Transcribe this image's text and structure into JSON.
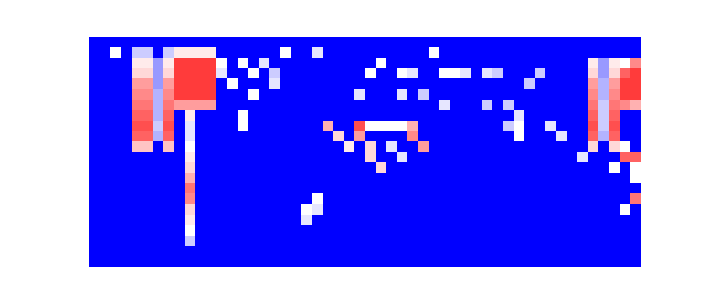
{
  "chart_data": {
    "type": "heatmap",
    "tick_labels": false,
    "zlim": [
      0,
      1
    ],
    "cells": [
      [
        0,
        0,
        0,
        0,
        0,
        0,
        0,
        0,
        0,
        0,
        0,
        0,
        0,
        0,
        0,
        0,
        0,
        0,
        0,
        0,
        0,
        0,
        0,
        0,
        0,
        0,
        0,
        0,
        0,
        0,
        0,
        0,
        0,
        0,
        0,
        0,
        0,
        0,
        0,
        0,
        0,
        0,
        0,
        0,
        0,
        0,
        0,
        0,
        0,
        0,
        0,
        0
      ],
      [
        0,
        0,
        0.5,
        0,
        0.4,
        0.4,
        0,
        0.4,
        0.55,
        0.55,
        0.55,
        0.55,
        0,
        0,
        0,
        0,
        0,
        0,
        0.5,
        0,
        0,
        0.45,
        0,
        0,
        0,
        0,
        0,
        0,
        0,
        0,
        0,
        0,
        0.5,
        0,
        0,
        0,
        0,
        0,
        0,
        0,
        0,
        0,
        0,
        0,
        0,
        0,
        0,
        0,
        0,
        0,
        0,
        0
      ],
      [
        0,
        0,
        0,
        0,
        0.55,
        0.55,
        0.3,
        0.55,
        1,
        1,
        1,
        1,
        0.5,
        0,
        0.5,
        0,
        0.45,
        0,
        0,
        0,
        0,
        0,
        0,
        0,
        0,
        0,
        0,
        0.5,
        0,
        0,
        0,
        0,
        0,
        0,
        0,
        0,
        0,
        0,
        0,
        0,
        0,
        0,
        0,
        0,
        0,
        0,
        0,
        0.55,
        0.3,
        0.55,
        0.5,
        0.8
      ],
      [
        0,
        0,
        0,
        0,
        0.6,
        0.6,
        0.3,
        0.6,
        1,
        1,
        1,
        1,
        0.45,
        0,
        0,
        0.5,
        0,
        0.4,
        0,
        0,
        0,
        0,
        0,
        0,
        0,
        0,
        0.5,
        0,
        0,
        0.5,
        0.45,
        0,
        0,
        0.5,
        0.5,
        0.45,
        0,
        0.45,
        0.4,
        0,
        0,
        0,
        0.4,
        0,
        0,
        0,
        0,
        0.6,
        0.3,
        0.6,
        0.9,
        1
      ],
      [
        0,
        0,
        0,
        0,
        0.75,
        0.75,
        0.3,
        0.75,
        1,
        1,
        1,
        1,
        0,
        0.5,
        0,
        0,
        0,
        0.45,
        0,
        0,
        0,
        0,
        0,
        0,
        0,
        0,
        0,
        0,
        0,
        0,
        0,
        0,
        0,
        0,
        0,
        0,
        0,
        0,
        0,
        0,
        0,
        0.4,
        0,
        0,
        0,
        0,
        0,
        0.75,
        0.35,
        0.75,
        1,
        1
      ],
      [
        0,
        0,
        0,
        0,
        0.8,
        0.8,
        0.35,
        0.8,
        1,
        1,
        1,
        1,
        0,
        0,
        0,
        0.5,
        0,
        0,
        0,
        0,
        0,
        0,
        0,
        0,
        0,
        0.45,
        0,
        0,
        0,
        0.45,
        0,
        0.4,
        0,
        0,
        0,
        0,
        0,
        0,
        0,
        0,
        0,
        0,
        0,
        0,
        0,
        0,
        0,
        0.8,
        0.35,
        0.8,
        1,
        1
      ],
      [
        0,
        0,
        0,
        0,
        0.85,
        0.85,
        0.35,
        0.85,
        0.75,
        0.75,
        0.75,
        0.75,
        0,
        0,
        0,
        0,
        0,
        0,
        0,
        0,
        0,
        0,
        0,
        0,
        0,
        0,
        0,
        0,
        0,
        0,
        0,
        0,
        0,
        0.45,
        0,
        0,
        0,
        0.4,
        0,
        0.4,
        0,
        0,
        0,
        0,
        0,
        0,
        0,
        0.85,
        0.4,
        0.85,
        0.8,
        0.7
      ],
      [
        0,
        0,
        0,
        0,
        0.9,
        0.9,
        0.35,
        0.9,
        0,
        0.55,
        0,
        0,
        0,
        0,
        0.5,
        0,
        0,
        0,
        0,
        0,
        0,
        0,
        0,
        0,
        0,
        0,
        0,
        0,
        0,
        0,
        0,
        0,
        0,
        0,
        0,
        0,
        0,
        0,
        0,
        0,
        0.45,
        0,
        0,
        0,
        0,
        0,
        0,
        0.9,
        0.4,
        0.9,
        0,
        0
      ],
      [
        0,
        0,
        0,
        0,
        0.95,
        0.95,
        0.4,
        0.95,
        0,
        0.45,
        0,
        0,
        0,
        0,
        0.5,
        0,
        0,
        0,
        0,
        0,
        0,
        0,
        0.7,
        0,
        0,
        0.95,
        0.5,
        0.5,
        0.5,
        0.5,
        0.7,
        0,
        0,
        0,
        0,
        0,
        0,
        0,
        0,
        0.4,
        0.5,
        0,
        0,
        0.45,
        0,
        0,
        0,
        0.95,
        0.4,
        0.95,
        0,
        0
      ],
      [
        0,
        0,
        0,
        0,
        0.9,
        0.9,
        0.35,
        0.9,
        0,
        0.45,
        0,
        0,
        0,
        0,
        0,
        0,
        0,
        0,
        0,
        0,
        0,
        0,
        0,
        0.6,
        0,
        0.75,
        0,
        0,
        0,
        0,
        0.8,
        0,
        0,
        0,
        0,
        0,
        0,
        0,
        0,
        0,
        0.5,
        0,
        0,
        0,
        0.45,
        0,
        0,
        0.9,
        0.35,
        0.9,
        0,
        0
      ],
      [
        0,
        0,
        0,
        0,
        0.65,
        0.65,
        0,
        0.65,
        0,
        0.5,
        0,
        0,
        0,
        0,
        0,
        0,
        0,
        0,
        0,
        0,
        0,
        0,
        0,
        0,
        0.55,
        0,
        0.6,
        0,
        0.45,
        0,
        0,
        0.75,
        0,
        0,
        0,
        0,
        0,
        0,
        0,
        0,
        0,
        0,
        0,
        0,
        0,
        0,
        0,
        0.6,
        0,
        0.6,
        0.5,
        0
      ],
      [
        0,
        0,
        0,
        0,
        0,
        0,
        0,
        0,
        0,
        0.55,
        0,
        0,
        0,
        0,
        0,
        0,
        0,
        0,
        0,
        0,
        0,
        0,
        0,
        0,
        0,
        0,
        0.6,
        0,
        0,
        0.45,
        0,
        0,
        0,
        0,
        0,
        0,
        0,
        0,
        0,
        0,
        0,
        0,
        0,
        0,
        0,
        0,
        0.45,
        0,
        0,
        0,
        0.9,
        0.9
      ],
      [
        0,
        0,
        0,
        0,
        0,
        0,
        0,
        0,
        0,
        0.6,
        0,
        0,
        0,
        0,
        0,
        0,
        0,
        0,
        0,
        0,
        0,
        0,
        0,
        0,
        0,
        0,
        0,
        0.6,
        0,
        0,
        0,
        0,
        0,
        0,
        0,
        0,
        0,
        0,
        0,
        0,
        0,
        0,
        0,
        0,
        0,
        0,
        0,
        0,
        0,
        0.5,
        0,
        0.5
      ],
      [
        0,
        0,
        0,
        0,
        0,
        0,
        0,
        0,
        0,
        0.7,
        0,
        0,
        0,
        0,
        0,
        0,
        0,
        0,
        0,
        0,
        0,
        0,
        0,
        0,
        0,
        0,
        0,
        0,
        0,
        0,
        0,
        0,
        0,
        0,
        0,
        0,
        0,
        0,
        0,
        0,
        0,
        0,
        0,
        0,
        0,
        0,
        0,
        0,
        0,
        0,
        0,
        0.5
      ],
      [
        0,
        0,
        0,
        0,
        0,
        0,
        0,
        0,
        0,
        0.85,
        0,
        0,
        0,
        0,
        0,
        0,
        0,
        0,
        0,
        0,
        0,
        0,
        0,
        0,
        0,
        0,
        0,
        0,
        0,
        0,
        0,
        0,
        0,
        0,
        0,
        0,
        0,
        0,
        0,
        0,
        0,
        0,
        0,
        0,
        0,
        0,
        0,
        0,
        0,
        0,
        0,
        0
      ],
      [
        0,
        0,
        0,
        0,
        0,
        0,
        0,
        0,
        0,
        0.8,
        0,
        0,
        0,
        0,
        0,
        0,
        0,
        0,
        0,
        0,
        0,
        0.5,
        0,
        0,
        0,
        0,
        0,
        0,
        0,
        0,
        0,
        0,
        0,
        0,
        0,
        0,
        0,
        0,
        0,
        0,
        0,
        0,
        0,
        0,
        0,
        0,
        0,
        0,
        0,
        0,
        0,
        0.85
      ],
      [
        0,
        0,
        0,
        0,
        0,
        0,
        0,
        0,
        0,
        0.6,
        0,
        0,
        0,
        0,
        0,
        0,
        0,
        0,
        0,
        0,
        0.5,
        0.45,
        0,
        0,
        0,
        0,
        0,
        0,
        0,
        0,
        0,
        0,
        0,
        0,
        0,
        0,
        0,
        0,
        0,
        0,
        0,
        0,
        0,
        0,
        0,
        0,
        0,
        0,
        0,
        0,
        0.5,
        0
      ],
      [
        0,
        0,
        0,
        0,
        0,
        0,
        0,
        0,
        0,
        0.55,
        0,
        0,
        0,
        0,
        0,
        0,
        0,
        0,
        0,
        0,
        0.45,
        0,
        0,
        0,
        0,
        0,
        0,
        0,
        0,
        0,
        0,
        0,
        0,
        0,
        0,
        0,
        0,
        0,
        0,
        0,
        0,
        0,
        0,
        0,
        0,
        0,
        0,
        0,
        0,
        0,
        0,
        0
      ],
      [
        0,
        0,
        0,
        0,
        0,
        0,
        0,
        0,
        0,
        0.5,
        0,
        0,
        0,
        0,
        0,
        0,
        0,
        0,
        0,
        0,
        0,
        0,
        0,
        0,
        0,
        0,
        0,
        0,
        0,
        0,
        0,
        0,
        0,
        0,
        0,
        0,
        0,
        0,
        0,
        0,
        0,
        0,
        0,
        0,
        0,
        0,
        0,
        0,
        0,
        0,
        0,
        0
      ],
      [
        0,
        0,
        0,
        0,
        0,
        0,
        0,
        0,
        0,
        0.4,
        0,
        0,
        0,
        0,
        0,
        0,
        0,
        0,
        0,
        0,
        0,
        0,
        0,
        0,
        0,
        0,
        0,
        0,
        0,
        0,
        0,
        0,
        0,
        0,
        0,
        0,
        0,
        0,
        0,
        0,
        0,
        0,
        0,
        0,
        0,
        0,
        0,
        0,
        0,
        0,
        0,
        0
      ],
      [
        0,
        0,
        0,
        0,
        0,
        0,
        0,
        0,
        0,
        0,
        0,
        0,
        0,
        0,
        0,
        0,
        0,
        0,
        0,
        0,
        0,
        0,
        0,
        0,
        0,
        0,
        0,
        0,
        0,
        0,
        0,
        0,
        0,
        0,
        0,
        0,
        0,
        0,
        0,
        0,
        0,
        0,
        0,
        0,
        0,
        0,
        0,
        0,
        0,
        0,
        0,
        0
      ],
      [
        0,
        0,
        0,
        0,
        0,
        0,
        0,
        0,
        0,
        0,
        0,
        0,
        0,
        0,
        0,
        0,
        0,
        0,
        0,
        0,
        0,
        0,
        0,
        0,
        0,
        0,
        0,
        0,
        0,
        0,
        0,
        0,
        0,
        0,
        0,
        0,
        0,
        0,
        0,
        0,
        0,
        0,
        0,
        0,
        0,
        0,
        0,
        0,
        0,
        0,
        0,
        0
      ]
    ]
  }
}
